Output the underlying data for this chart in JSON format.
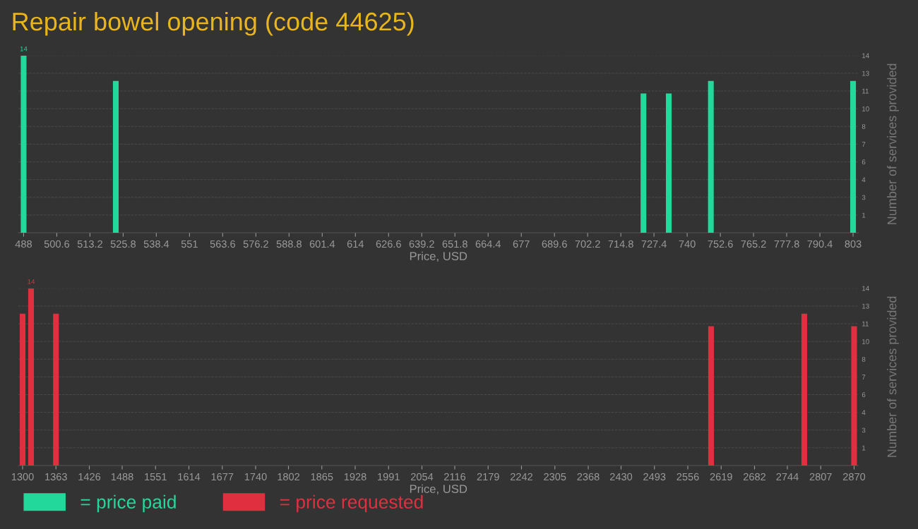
{
  "chart_data": [
    {
      "type": "bar",
      "title": "Repair bowel opening (code 44625)",
      "xlabel": "Price, USD",
      "ylabel": "Number of services provided",
      "x": [
        488,
        523,
        723.4,
        733,
        749,
        803
      ],
      "series": [
        {
          "name": "= price paid",
          "color": "#22d99b",
          "values": [
            14,
            12,
            11,
            11,
            12,
            12
          ],
          "value_labels": [
            "14",
            null,
            null,
            null,
            null,
            null
          ]
        }
      ],
      "xlim": [
        486,
        805
      ],
      "xticks": [
        488,
        500.6,
        513.2,
        525.8,
        538.4,
        551,
        563.6,
        576.2,
        588.8,
        601.4,
        614,
        626.6,
        639.2,
        651.8,
        664.4,
        677,
        689.6,
        702.2,
        714.8,
        727.4,
        740,
        752.6,
        765.2,
        777.8,
        790.4,
        803
      ],
      "ylim": [
        0,
        14
      ],
      "yticks": [
        {
          "value": 1.4,
          "label": "1"
        },
        {
          "value": 2.8,
          "label": "3"
        },
        {
          "value": 4.2,
          "label": "4"
        },
        {
          "value": 5.6,
          "label": "6"
        },
        {
          "value": 7,
          "label": "7"
        },
        {
          "value": 8.4,
          "label": "8"
        },
        {
          "value": 9.8,
          "label": "10"
        },
        {
          "value": 11.2,
          "label": "11"
        },
        {
          "value": 12.6,
          "label": "13"
        },
        {
          "value": 14,
          "label": "14"
        }
      ],
      "grid": "y",
      "legend": "bottom left"
    },
    {
      "type": "bar",
      "xlabel": "Price, USD",
      "ylabel": "Number of services provided",
      "x": [
        1300,
        1316,
        1363,
        2600,
        2776,
        2870
      ],
      "series": [
        {
          "name": "= price requested",
          "color": "#e0303f",
          "values": [
            12,
            14,
            12,
            11,
            12,
            11
          ],
          "value_labels": [
            null,
            "14",
            null,
            null,
            null,
            null
          ]
        }
      ],
      "xlim": [
        1292,
        2878
      ],
      "xticks": [
        1300,
        1363,
        1426,
        1488,
        1551,
        1614,
        1677,
        1740,
        1802,
        1865,
        1928,
        1991,
        2054,
        2116,
        2179,
        2242,
        2305,
        2368,
        2430,
        2493,
        2556,
        2619,
        2682,
        2744,
        2807,
        2870
      ],
      "ylim": [
        0,
        14
      ],
      "yticks": [
        {
          "value": 1.4,
          "label": "1"
        },
        {
          "value": 2.8,
          "label": "3"
        },
        {
          "value": 4.2,
          "label": "4"
        },
        {
          "value": 5.6,
          "label": "6"
        },
        {
          "value": 7,
          "label": "7"
        },
        {
          "value": 8.4,
          "label": "8"
        },
        {
          "value": 9.8,
          "label": "10"
        },
        {
          "value": 11.2,
          "label": "11"
        },
        {
          "value": 12.6,
          "label": "13"
        },
        {
          "value": 14,
          "label": "14"
        }
      ],
      "grid": "y",
      "legend": "bottom left"
    }
  ]
}
